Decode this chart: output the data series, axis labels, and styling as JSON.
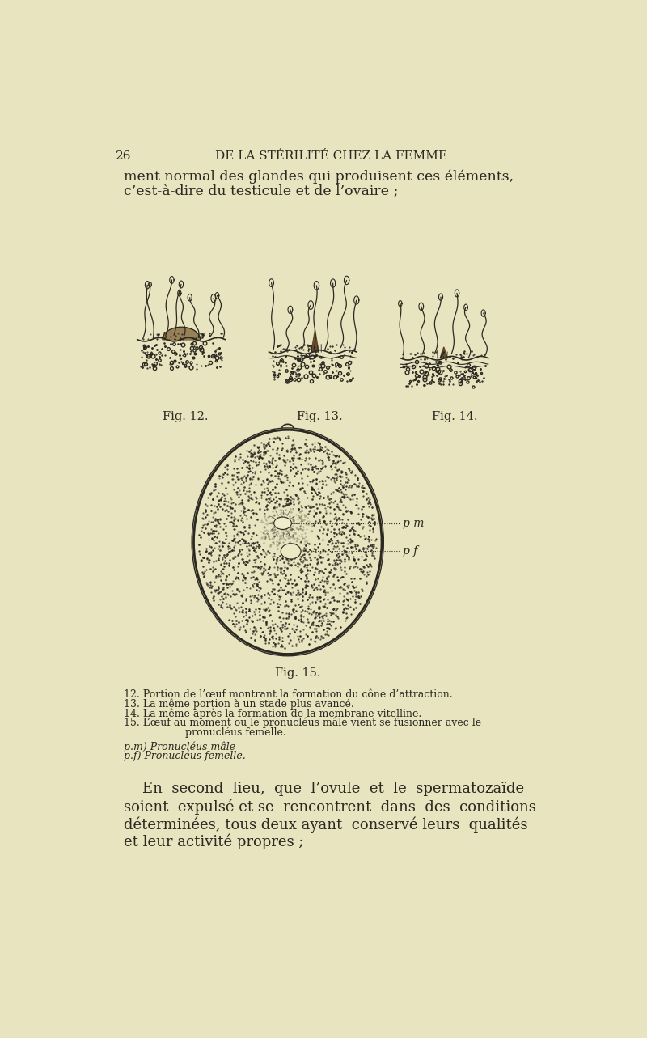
{
  "bg_color": "#e8e4c0",
  "page_number": "26",
  "header_title": "DE LA STÉRILITÉ CHEZ LA FEMME",
  "intro_text_line1": "ment normal des glandes qui produisent ces éléments,",
  "intro_text_line2": "c’est-à-dire du testicule et de l’ovaire ;",
  "fig_labels": [
    "Fig. 12.",
    "Fig. 13.",
    "Fig. 14.",
    "Fig. 15."
  ],
  "caption_lines": [
    "12. Portion de l’œuf montrant la formation du cône d’attraction.",
    "13. La même portion à un stade plus avancé.",
    "14. La même après la formation de la membrane vitelline.",
    "15. L’œuf au moment ou le pronucléus mâle vient se fusionner avec le",
    "                   pronucléus femelle."
  ],
  "legend_lines": [
    "p.m) Pronucléus mâle",
    "p.f) Pronucléus femelle."
  ],
  "body_text_lines": [
    "    En  second  lieu,  que  l’ovule  et  le  spermatozaïde",
    "soient  expulsé et se  rencontrent  dans  des  conditions",
    "déterminées, tous deux ayant  conservé leurs  qualités",
    "et leur activité propres ;"
  ],
  "pm_label": "p m",
  "pf_label": "p f",
  "text_color": "#2a2820",
  "ink_color": "#2a2820"
}
